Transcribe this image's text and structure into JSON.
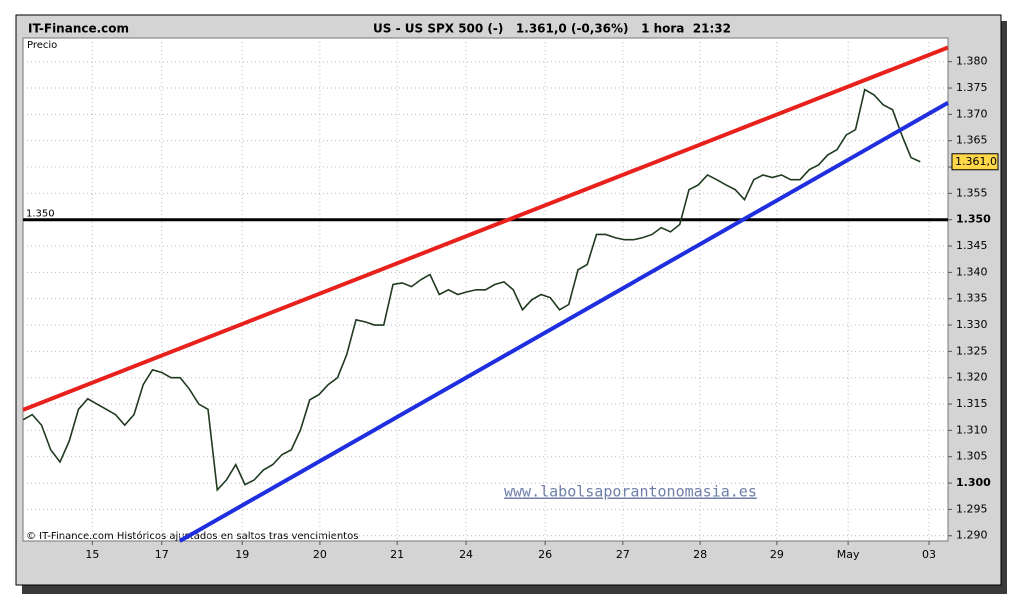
{
  "chart_data": {
    "type": "line",
    "site": "IT-Finance.com",
    "title": "US - US SPX 500 (-)   1.361,0 (-0,36%)   1 hora  21:32",
    "y_label": "Precio",
    "footer": "© IT-Finance.com Históricos ajustados en saltos tras vencimientos",
    "watermark": "www.labolsaporantonomasia.es",
    "color": "#1f3a1f",
    "grid": true,
    "x": [
      0,
      2,
      4,
      6,
      8,
      10,
      12,
      14,
      16,
      18,
      20,
      22,
      24,
      26,
      28,
      30,
      32,
      34,
      36,
      38,
      40,
      42,
      44,
      46,
      48,
      50,
      52,
      54,
      56,
      58,
      60,
      62,
      64,
      66,
      68,
      70,
      72,
      74,
      76,
      78,
      80,
      82,
      84,
      86,
      88,
      90,
      92,
      94,
      96,
      98,
      100,
      102,
      104,
      106,
      108,
      110,
      112,
      114,
      116,
      118,
      120,
      122,
      124,
      126,
      128,
      130,
      132,
      134,
      136,
      138,
      140,
      142,
      144,
      146,
      148,
      150,
      152,
      154,
      156,
      158,
      160,
      162,
      164,
      166,
      168,
      170,
      172,
      174,
      176,
      178,
      180,
      182,
      184,
      186,
      188,
      190,
      192,
      194
    ],
    "values": [
      1312,
      1313,
      1311,
      1306.3,
      1304,
      1308,
      1314,
      1316,
      1315,
      1314,
      1313,
      1311,
      1313,
      1318.7,
      1321.5,
      1321,
      1320,
      1320,
      1317.8,
      1315,
      1314,
      1298.7,
      1300.6,
      1303.5,
      1299.7,
      1300.6,
      1302.5,
      1303.5,
      1305.4,
      1306.3,
      1310.1,
      1315.8,
      1316.8,
      1318.7,
      1320,
      1324.4,
      1331,
      1330.6,
      1330,
      1330,
      1337.7,
      1338,
      1337.3,
      1338.6,
      1339.6,
      1335.8,
      1336.7,
      1335.8,
      1336.3,
      1336.7,
      1336.7,
      1337.7,
      1338.2,
      1336.7,
      1332.9,
      1334.8,
      1335.8,
      1335.2,
      1332.9,
      1333.9,
      1340.5,
      1341.5,
      1347.2,
      1347.2,
      1346.6,
      1346.2,
      1346.2,
      1346.6,
      1347.2,
      1348.5,
      1347.7,
      1349.1,
      1355.7,
      1356.6,
      1358.5,
      1357.6,
      1356.6,
      1355.7,
      1353.8,
      1357.6,
      1358.5,
      1358,
      1358.5,
      1357.6,
      1357.6,
      1359.5,
      1360.4,
      1362.3,
      1363.3,
      1366.1,
      1367.1,
      1374.7,
      1373.7,
      1371.8,
      1370.9,
      1366.1,
      1361.8,
      1361
    ],
    "xlim": [
      0,
      200
    ],
    "xticks": [
      15,
      {
        "value": 30,
        "label": "17"
      },
      {
        "value": 47.4,
        "label": "19"
      },
      {
        "value": 64.2,
        "label": "20"
      },
      {
        "value": 80.9,
        "label": "21"
      },
      {
        "value": 95.8,
        "label": "24"
      },
      {
        "value": 112.9,
        "label": "26"
      },
      {
        "value": 129.7,
        "label": "27"
      },
      {
        "value": 146.4,
        "label": "28"
      },
      {
        "value": 163,
        "label": "29"
      },
      {
        "value": 178.4,
        "label": "May"
      },
      {
        "value": 195.9,
        "label": "03"
      }
    ],
    "ylim": [
      1289,
      1384.5
    ],
    "yticks": [
      {
        "value": 1290,
        "label": "1.290"
      },
      {
        "value": 1295,
        "label": "1.295"
      },
      {
        "value": 1300,
        "label": "1.300"
      },
      {
        "value": 1305,
        "label": "1.305"
      },
      {
        "value": 1310,
        "label": "1.310"
      },
      {
        "value": 1315,
        "label": "1.315"
      },
      {
        "value": 1320,
        "label": "1.320"
      },
      {
        "value": 1325,
        "label": "1.325"
      },
      {
        "value": 1330,
        "label": "1.330"
      },
      {
        "value": 1335,
        "label": "1.335"
      },
      {
        "value": 1340,
        "label": "1.340"
      },
      {
        "value": 1345,
        "label": "1.345"
      },
      {
        "value": 1350,
        "label": "1.350"
      },
      {
        "value": 1355,
        "label": "1.355"
      },
      {
        "value": 1360,
        "label": "1.360"
      },
      {
        "value": 1365,
        "label": "1.365"
      },
      {
        "value": 1370,
        "label": "1.370"
      },
      {
        "value": 1375,
        "label": "1.375"
      },
      {
        "value": 1380,
        "label": "1.380"
      }
    ],
    "trendlines": [
      {
        "color": "#e8211d",
        "x": [
          0,
          200
        ],
        "values": [
          1313.9,
          1382.7
        ]
      },
      {
        "color": "#1f2fe0",
        "x": [
          33.9,
          200
        ],
        "values": [
          1289,
          1372.2
        ]
      }
    ],
    "hline": {
      "value": 1350,
      "label": "1.350",
      "color": "#000000"
    },
    "last_price": {
      "value": 1361,
      "label": "1.361,0"
    }
  }
}
